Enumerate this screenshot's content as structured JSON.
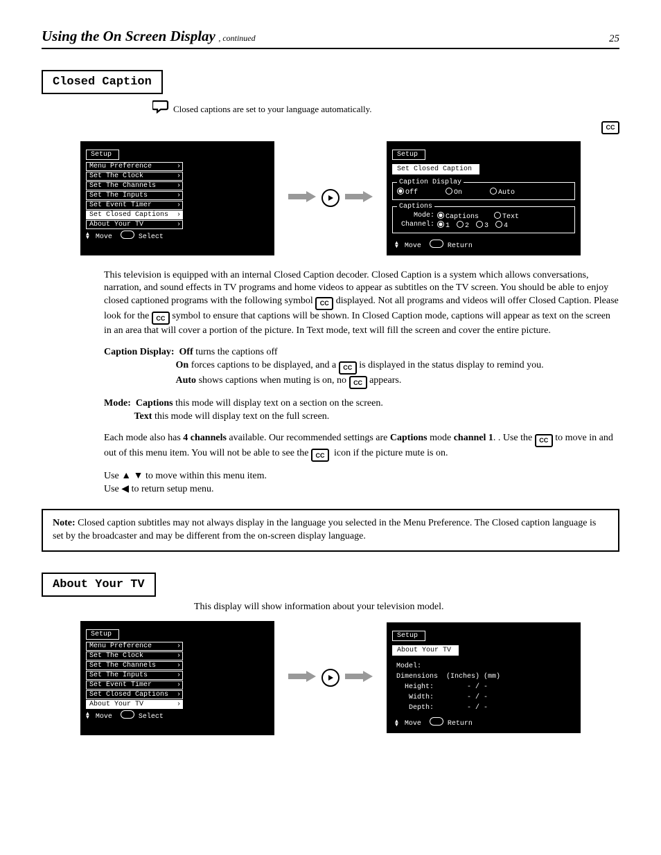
{
  "header": {
    "title": "Using the On Screen Display",
    "section": "continued",
    "page_number": "25"
  },
  "closed_caption": {
    "section_label": "Closed Caption",
    "setup_menu_title": "Setup",
    "setup_items": [
      "Menu Preference",
      "Set The Clock",
      "Set The Channels",
      "Set The Inputs",
      "Set Event Timer",
      "Set Closed Captions",
      "About Your TV"
    ],
    "setup_selected_index": 5,
    "setup_status_move": "Move",
    "setup_status_select": "Select",
    "cc_menu_title": "Setup",
    "cc_subtab": "Set Closed Caption",
    "caption_display_legend": "Caption Display",
    "caption_display_options": [
      "Off",
      "On",
      "Auto"
    ],
    "caption_display_selected": 0,
    "captions_legend": "Captions",
    "mode_label": "Mode:",
    "mode_options": [
      "Captions",
      "Text"
    ],
    "mode_selected": 0,
    "channel_label": "Channel:",
    "channel_options": [
      "1",
      "2",
      "3",
      "4"
    ],
    "channel_selected": 0,
    "cc_status_move": "Move",
    "cc_status_return": "Return"
  },
  "body": {
    "intro_prefix": "This television is equipped with an internal Closed Caption decoder. Closed Caption is a system which allows conversations, narration, and sound effects in TV programs and home videos to appear as subtitles on the TV screen. You should be able to enjoy closed captioned programs with the following symbol ",
    "intro_suffix": "displayed. Not all programs and videos will offer Closed Caption. Please look for the ",
    "intro_tail": " symbol to ensure that captions will be shown. In Closed Caption mode, captions will appear as text on the screen in an area that will cover a portion of the picture. In Text mode, text will fill the screen and cover the entire picture.",
    "capdisp_h1_label": "Caption Display:",
    "capdisp_off_label": "Off",
    "capdisp_off_text": "turns the captions off",
    "capdisp_on_label": "On",
    "capdisp_on_text": "forces captions to be displayed, and a ",
    "capdisp_on_text2": " is displayed in the status display to remind you.",
    "capdisp_auto_label": "Auto",
    "capdisp_auto_text": "shows captions when muting is on, no ",
    "capdisp_auto_text2": " appears.",
    "mode_h_label": "Mode:",
    "mode_cap_label": "Captions",
    "mode_cap_text": "this mode will display text on a section on the screen.",
    "mode_text_label": "Text",
    "mode_text_text": "this mode will display text on the full screen.",
    "channel_note_prefix": "Each mode also has ",
    "channel_note_mid": " available. Our recommended settings are ",
    "channel_note_mid2": " mode ",
    "channel_note_suffix": ". Use the ",
    "channel_note_tail": " to move in and out of this menu item. You will not be able to see the ",
    "channel_note_tail2": "icon if the picture mute is on.",
    "bold_4channels": "4 channels",
    "bold_captions": "Captions",
    "bold_channel1": "channel 1",
    "nav_text_1": "Use ",
    "nav_text_2": " to move within this menu item.",
    "nav_text_3": "Use ",
    "nav_text_4": " to return setup menu.",
    "note_label": "Note:",
    "note_text": "Closed caption subtitles may not always display in the language you selected in the Menu Preference. The Closed caption language is set by the broadcaster and may be different from the on-screen display language."
  },
  "about_tv": {
    "section_label": "About Your TV",
    "intro": "This display will show information about your television model.",
    "setup_selected_index": 6,
    "subtab": "About Your TV",
    "model_label": "Model:",
    "dim_label": "Dimensions",
    "dim_cols": "(Inches) (mm)",
    "height_label": "Height:",
    "width_label": "Width:",
    "depth_label": "Depth:",
    "val_sep": "- / -",
    "status_move": "Move",
    "status_return": "Return"
  },
  "colors": {
    "page_bg": "#ffffff",
    "text": "#000000",
    "osd_bg": "#000000",
    "osd_fg": "#ffffff",
    "arrow_gray": "#888888"
  }
}
